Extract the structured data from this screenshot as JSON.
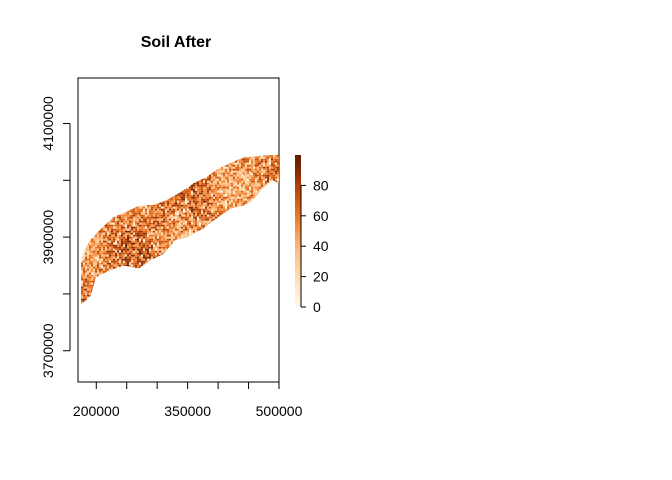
{
  "chart_data": {
    "type": "heatmap",
    "title": "Soil After",
    "xlabel": "",
    "ylabel": "",
    "xlim": [
      170000,
      500000
    ],
    "ylim": [
      3645000,
      4180000
    ],
    "x_ticks": [
      200000,
      250000,
      300000,
      350000,
      400000,
      450000,
      500000
    ],
    "x_tick_labels": [
      "200000",
      "",
      "",
      "350000",
      "",
      "",
      "500000"
    ],
    "y_ticks": [
      3700000,
      3800000,
      3900000,
      4000000,
      4100000
    ],
    "y_tick_labels": [
      "3700000",
      "",
      "3900000",
      "",
      "4100000"
    ],
    "legend": {
      "placement": "right",
      "range": [
        0,
        100
      ],
      "ticks": [
        0,
        20,
        40,
        60,
        80
      ],
      "tick_labels": [
        "0",
        "20",
        "40",
        "60",
        "80"
      ],
      "colors": [
        "#fff7ec",
        "#fee8c8",
        "#fdd49e",
        "#fdbb84",
        "#f7974b",
        "#e6701e",
        "#c44d0a",
        "#8c2d04",
        "#5a1c02"
      ]
    },
    "raster_extent": {
      "x": [
        175000,
        500000
      ],
      "y": [
        3780000,
        4045000
      ]
    },
    "raster_outline": [
      [
        175000,
        3782000
      ],
      [
        190000,
        3795000
      ],
      [
        200000,
        3830000
      ],
      [
        220000,
        3840000
      ],
      [
        245000,
        3850000
      ],
      [
        270000,
        3845000
      ],
      [
        290000,
        3860000
      ],
      [
        310000,
        3870000
      ],
      [
        330000,
        3895000
      ],
      [
        350000,
        3900000
      ],
      [
        375000,
        3915000
      ],
      [
        400000,
        3935000
      ],
      [
        420000,
        3950000
      ],
      [
        440000,
        3955000
      ],
      [
        458000,
        3965000
      ],
      [
        472000,
        3985000
      ],
      [
        490000,
        4000000
      ],
      [
        500000,
        3995000
      ],
      [
        500000,
        4045000
      ],
      [
        470000,
        4043000
      ],
      [
        440000,
        4040000
      ],
      [
        420000,
        4030000
      ],
      [
        400000,
        4020000
      ],
      [
        380000,
        4005000
      ],
      [
        360000,
        3995000
      ],
      [
        340000,
        3980000
      ],
      [
        315000,
        3965000
      ],
      [
        295000,
        3957000
      ],
      [
        270000,
        3955000
      ],
      [
        250000,
        3945000
      ],
      [
        228000,
        3935000
      ],
      [
        208000,
        3915000
      ],
      [
        190000,
        3895000
      ],
      [
        178000,
        3870000
      ],
      [
        172000,
        3840000
      ],
      [
        170000,
        3810000
      ],
      [
        175000,
        3782000
      ]
    ],
    "raster_value_range": [
      0,
      100
    ]
  }
}
